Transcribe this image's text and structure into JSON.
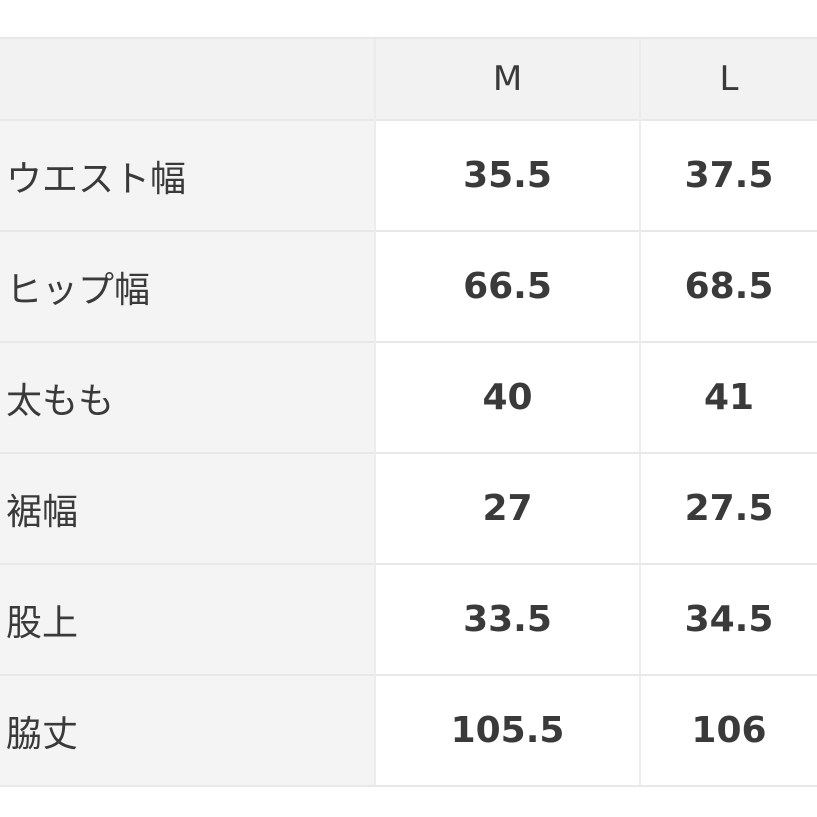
{
  "table": {
    "headers": [
      "",
      "M",
      "L"
    ],
    "rows": [
      {
        "label": "ウエスト幅",
        "values": [
          "35.5",
          "37.5"
        ]
      },
      {
        "label": "ヒップ幅",
        "values": [
          "66.5",
          "68.5"
        ]
      },
      {
        "label": "太もも",
        "values": [
          "40",
          "41"
        ]
      },
      {
        "label": "裾幅",
        "values": [
          "27",
          "27.5"
        ]
      },
      {
        "label": "股上",
        "values": [
          "33.5",
          "34.5"
        ]
      },
      {
        "label": "脇丈",
        "values": [
          "105.5",
          "106"
        ]
      }
    ]
  }
}
